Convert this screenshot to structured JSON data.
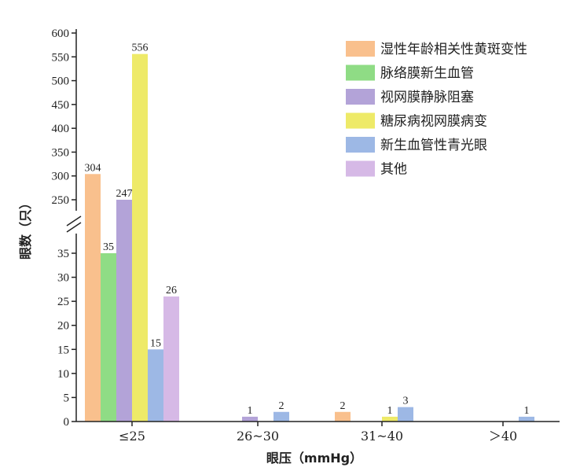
{
  "chart_data": {
    "type": "bar",
    "title": "",
    "xlabel": "眼压（mmHg）",
    "ylabel": "眼数（只）",
    "categories": [
      "≤25",
      "26~30",
      "31~40",
      "＞40"
    ],
    "axis_break": {
      "lower_range": [
        0,
        35
      ],
      "upper_range": [
        250,
        600
      ],
      "lower_ticks": [
        0,
        5,
        10,
        15,
        20,
        25,
        30,
        35
      ],
      "upper_ticks": [
        250,
        300,
        350,
        400,
        450,
        500,
        550,
        600
      ]
    },
    "ylim": [
      0,
      600
    ],
    "grid": false,
    "legend_position": "top-right",
    "series": [
      {
        "name": "湿性年龄相关性黄斑变性",
        "color": "#f9c08d",
        "values": [
          304,
          0,
          2,
          0
        ],
        "labels": [
          "304",
          "",
          "2",
          ""
        ]
      },
      {
        "name": "脉络膜新生血管",
        "color": "#8fdc85",
        "values": [
          35,
          0,
          0,
          0
        ],
        "labels": [
          "35",
          "",
          "",
          ""
        ]
      },
      {
        "name": "视网膜静脉阻塞",
        "color": "#b3a3d8",
        "values": [
          247,
          1,
          0,
          0
        ],
        "labels": [
          "247",
          "1",
          "",
          ""
        ]
      },
      {
        "name": "糖尿病视网膜病变",
        "color": "#eeea68",
        "values": [
          556,
          0,
          1,
          0
        ],
        "labels": [
          "556",
          "",
          "1",
          ""
        ]
      },
      {
        "name": "新生血管性青光眼",
        "color": "#9db8e5",
        "values": [
          15,
          2,
          3,
          1
        ],
        "labels": [
          "15",
          "2",
          "3",
          "1"
        ]
      },
      {
        "name": "其他",
        "color": "#d6b9e6",
        "values": [
          26,
          0,
          0,
          0
        ],
        "labels": [
          "26",
          "",
          "",
          ""
        ]
      }
    ]
  }
}
